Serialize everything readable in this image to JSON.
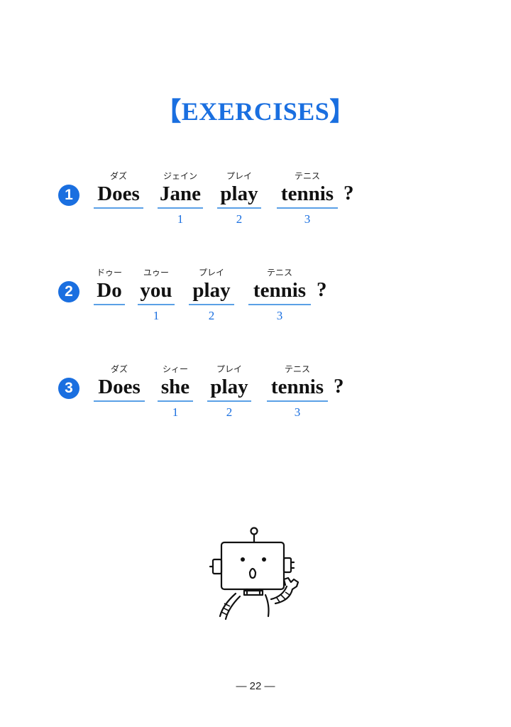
{
  "title": "【EXERCISES】",
  "exercises": [
    {
      "number": "1",
      "words": [
        {
          "reading": "ダズ",
          "text": "Does",
          "num": ""
        },
        {
          "reading": "ジェイン",
          "text": "Jane",
          "num": "1"
        },
        {
          "reading": "プレイ",
          "text": "play",
          "num": "2"
        },
        {
          "reading": "テニス",
          "text": "tennis",
          "num": "3"
        }
      ],
      "punct": "?"
    },
    {
      "number": "2",
      "words": [
        {
          "reading": "ドゥー",
          "text": "Do",
          "num": ""
        },
        {
          "reading": "ユゥー",
          "text": "you",
          "num": "1"
        },
        {
          "reading": "プレイ",
          "text": "play",
          "num": "2"
        },
        {
          "reading": "テニス",
          "text": "tennis",
          "num": "3"
        }
      ],
      "punct": "?"
    },
    {
      "number": "3",
      "words": [
        {
          "reading": "ダズ",
          "text": "Does",
          "num": ""
        },
        {
          "reading": "シィー",
          "text": "she",
          "num": "1"
        },
        {
          "reading": "プレイ",
          "text": "play",
          "num": "2"
        },
        {
          "reading": "テニス",
          "text": "tennis",
          "num": "3"
        }
      ],
      "punct": "?"
    }
  ],
  "illustration": "robot-illustration",
  "page_number": "— 22 —"
}
